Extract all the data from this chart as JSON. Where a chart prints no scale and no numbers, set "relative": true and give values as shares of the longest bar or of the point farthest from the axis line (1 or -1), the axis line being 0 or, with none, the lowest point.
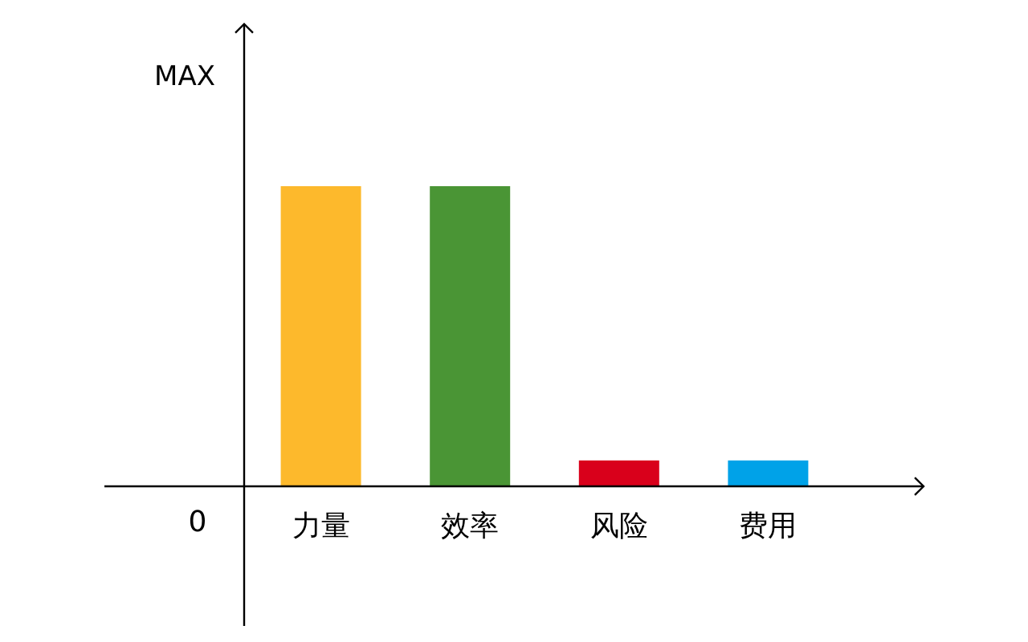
{
  "chart_data": {
    "type": "bar",
    "relative": true,
    "ylabel": "MAX",
    "annotations": [
      "0"
    ],
    "categories": [
      "力量",
      "效率",
      "风险",
      "费用"
    ],
    "values": [
      1,
      1,
      0.086,
      0.086
    ],
    "colors": [
      "#fdb92c",
      "#4a9535",
      "#d9001b",
      "#00a2e8"
    ]
  }
}
